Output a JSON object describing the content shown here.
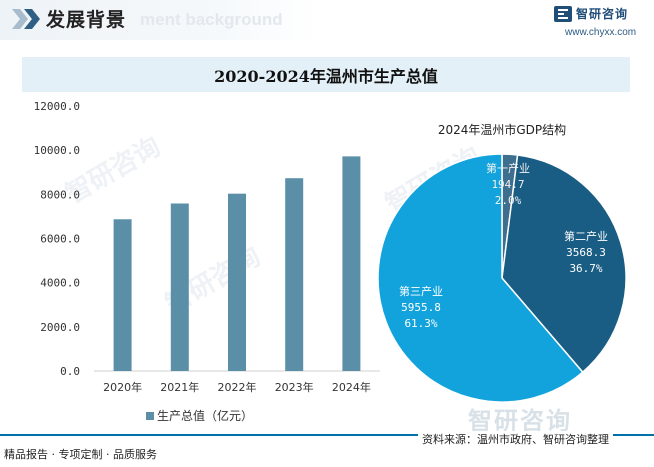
{
  "header": {
    "title": "发展背景",
    "watermark": "ment background",
    "logo_text": "智研咨询",
    "logo_url": "www.chyxx.com"
  },
  "chart_title": "2020-2024年温州市生产总值",
  "watermark_text": "智研咨询",
  "chart_data": [
    {
      "type": "bar",
      "categories": [
        "2020年",
        "2021年",
        "2022年",
        "2023年",
        "2024年"
      ],
      "series": [
        {
          "name": "生产总值（亿元）",
          "values": [
            6870.9,
            7585.0,
            8029.8,
            8730.6,
            9718.8
          ]
        }
      ],
      "ylim": [
        0,
        12000
      ],
      "yticks": [
        "0.0",
        "2000.0",
        "4000.0",
        "6000.0",
        "8000.0",
        "10000.0",
        "12000.0"
      ],
      "ytick_values": [
        0,
        2000,
        4000,
        6000,
        8000,
        10000,
        12000
      ],
      "legend": "bottom",
      "color": "#5b8fa8"
    },
    {
      "type": "pie",
      "title": "2024年温州市GDP结构",
      "labels": [
        "第一产业",
        "第二产业",
        "第三产业"
      ],
      "values": [
        194.7,
        3568.3,
        5955.8
      ],
      "value_labels": [
        "194.7",
        "3568.3",
        "5955.8"
      ],
      "percent_labels": [
        "2.0%",
        "36.7%",
        "61.3%"
      ],
      "colors": [
        "#3f6f8f",
        "#1a5d84",
        "#12a3dc"
      ]
    }
  ],
  "footer": {
    "left": "精品报告 · 专项定制 · 品质服务",
    "source": "资料来源：温州市政府、智研咨询整理",
    "big_logo": "智研咨询"
  }
}
